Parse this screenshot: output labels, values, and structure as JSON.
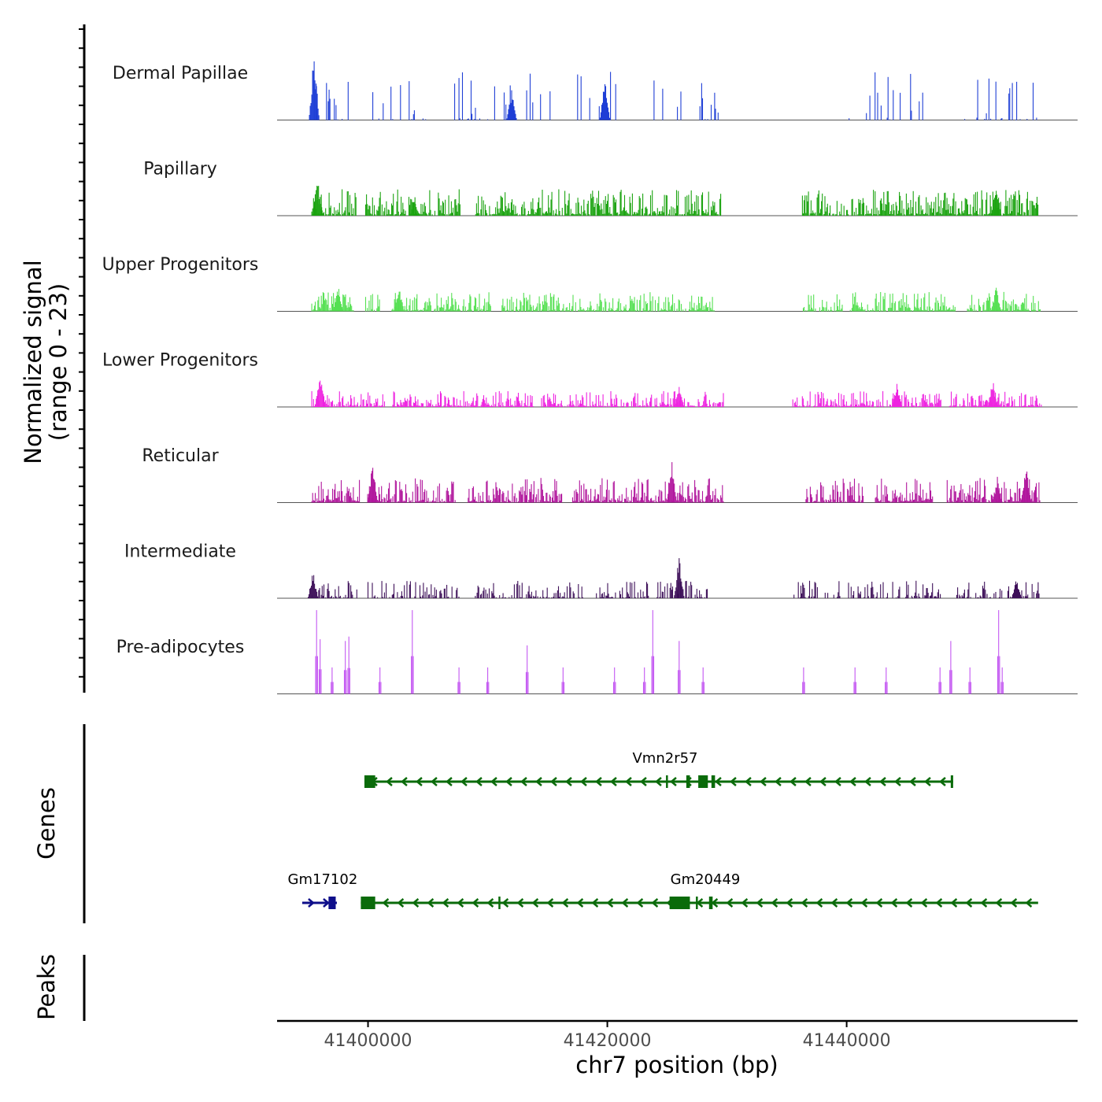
{
  "chart_data": {
    "type": "area",
    "title": "",
    "chromosome": "chr7",
    "xlabel": "chr7 position (bp)",
    "ylabel_line1": "Normalized signal",
    "ylabel_line2": "(range 0 - 23)",
    "xlim": [
      41392400,
      41459300
    ],
    "ylim": [
      0,
      23
    ],
    "x_ticks": [
      41400000,
      41420000,
      41440000
    ],
    "x_tick_labels": [
      "41400000",
      "41420000",
      "41440000"
    ],
    "tracks": [
      {
        "name": "Dermal Papillae",
        "color": "#1f3fd6",
        "style": "spiky",
        "peak": 0.55,
        "seed": 11,
        "regions": [
          [
            41395300,
            41398900
          ],
          [
            41400400,
            41404900
          ],
          [
            41406300,
            41409500
          ],
          [
            41410000,
            41415400
          ],
          [
            41417300,
            41421900
          ],
          [
            41423900,
            41429600
          ],
          [
            41438900,
            41446600
          ],
          [
            41448200,
            41456100
          ]
        ],
        "highlights": [
          [
            41395500,
            0.82
          ],
          [
            41419800,
            0.48
          ],
          [
            41412000,
            0.35
          ]
        ]
      },
      {
        "name": "Papillary",
        "color": "#1aa30f",
        "style": "dense",
        "peak": 0.3,
        "seed": 23,
        "regions": [
          [
            41395300,
            41399000
          ],
          [
            41399800,
            41407700
          ],
          [
            41409000,
            41429600
          ],
          [
            41436300,
            41456000
          ]
        ],
        "highlights": [
          [
            41395800,
            0.45
          ],
          [
            41452500,
            0.42
          ],
          [
            41403900,
            0.2
          ]
        ]
      },
      {
        "name": "Upper Progenitors",
        "color": "#55e052",
        "style": "dense",
        "peak": 0.22,
        "seed": 37,
        "regions": [
          [
            41395300,
            41398800
          ],
          [
            41399800,
            41401000
          ],
          [
            41402000,
            41410300
          ],
          [
            41411200,
            41429000
          ],
          [
            41436300,
            41439700
          ],
          [
            41440300,
            41449100
          ],
          [
            41450100,
            41456200
          ]
        ],
        "highlights": [
          [
            41397500,
            0.3
          ],
          [
            41452500,
            0.3
          ],
          [
            41402600,
            0.28
          ]
        ]
      },
      {
        "name": "Lower Progenitors",
        "color": "#ee22e0",
        "style": "dense",
        "peak": 0.18,
        "seed": 41,
        "regions": [
          [
            41395300,
            41401400
          ],
          [
            41402000,
            41413800
          ],
          [
            41414500,
            41429700
          ],
          [
            41435500,
            41447900
          ],
          [
            41448600,
            41456300
          ]
        ],
        "highlights": [
          [
            41396000,
            0.42
          ],
          [
            41452200,
            0.32
          ],
          [
            41426000,
            0.25
          ],
          [
            41444200,
            0.28
          ]
        ]
      },
      {
        "name": "Reticular",
        "color": "#b0159c",
        "style": "dense",
        "peak": 0.28,
        "seed": 53,
        "regions": [
          [
            41395300,
            41399300
          ],
          [
            41399900,
            41407300
          ],
          [
            41408300,
            41416200
          ],
          [
            41417100,
            41429700
          ],
          [
            41436600,
            41441400
          ],
          [
            41442400,
            41447200
          ],
          [
            41448400,
            41456300
          ]
        ],
        "highlights": [
          [
            41400400,
            0.48
          ],
          [
            41425400,
            0.5
          ],
          [
            41455000,
            0.42
          ],
          [
            41452600,
            0.3
          ]
        ]
      },
      {
        "name": "Intermediate",
        "color": "#3d0f58",
        "style": "sparse",
        "peak": 0.2,
        "seed": 67,
        "regions": [
          [
            41395300,
            41399100
          ],
          [
            41400000,
            41407800
          ],
          [
            41408900,
            41418000
          ],
          [
            41418800,
            41428600
          ],
          [
            41435600,
            41447900
          ],
          [
            41449200,
            41456100
          ]
        ],
        "highlights": [
          [
            41395400,
            0.32
          ],
          [
            41426000,
            0.5
          ],
          [
            41454200,
            0.24
          ]
        ]
      },
      {
        "name": "Pre-adipocytes",
        "color": "#c356f2",
        "style": "peaks",
        "peak": 1.0,
        "seed": 79,
        "regions": [],
        "peaks": [
          [
            41395700,
            0.95
          ],
          [
            41396000,
            0.62
          ],
          [
            41397000,
            0.3
          ],
          [
            41398100,
            0.6
          ],
          [
            41398400,
            0.65
          ],
          [
            41401000,
            0.3
          ],
          [
            41403700,
            0.95
          ],
          [
            41407600,
            0.3
          ],
          [
            41410000,
            0.3
          ],
          [
            41413300,
            0.55
          ],
          [
            41416300,
            0.3
          ],
          [
            41420600,
            0.3
          ],
          [
            41423100,
            0.3
          ],
          [
            41423800,
            0.95
          ],
          [
            41426000,
            0.6
          ],
          [
            41428000,
            0.3
          ],
          [
            41436400,
            0.3
          ],
          [
            41440700,
            0.3
          ],
          [
            41443300,
            0.3
          ],
          [
            41447800,
            0.3
          ],
          [
            41448700,
            0.6
          ],
          [
            41450300,
            0.3
          ],
          [
            41452700,
            0.95
          ],
          [
            41453000,
            0.3
          ]
        ]
      }
    ],
    "genes": [
      {
        "name": "Vmn2r57",
        "strand": "-",
        "color": "#0a6b0a",
        "row": 0,
        "start": 41399700,
        "end": 41448900,
        "exons": [
          [
            41399700,
            41400600
          ],
          [
            41424900,
            41425000
          ],
          [
            41426600,
            41426900
          ],
          [
            41427600,
            41428400
          ],
          [
            41428700,
            41429000
          ],
          [
            41448700,
            41448900
          ]
        ]
      },
      {
        "name": "Gm17102",
        "strand": "+",
        "color": "#0e0e8a",
        "row": 1,
        "start": 41394500,
        "end": 41397400,
        "exons": [
          [
            41396700,
            41397300
          ]
        ]
      },
      {
        "name": "Gm20449",
        "strand": "-",
        "color": "#0a6b0a",
        "row": 1,
        "start": 41399400,
        "end": 41456000,
        "exons": [
          [
            41399400,
            41400600
          ],
          [
            41410900,
            41411000
          ],
          [
            41425200,
            41426900
          ],
          [
            41427400,
            41427500
          ],
          [
            41428500,
            41428800
          ]
        ]
      }
    ],
    "panel_labels": {
      "genes": "Genes",
      "peaks": "Peaks"
    }
  }
}
